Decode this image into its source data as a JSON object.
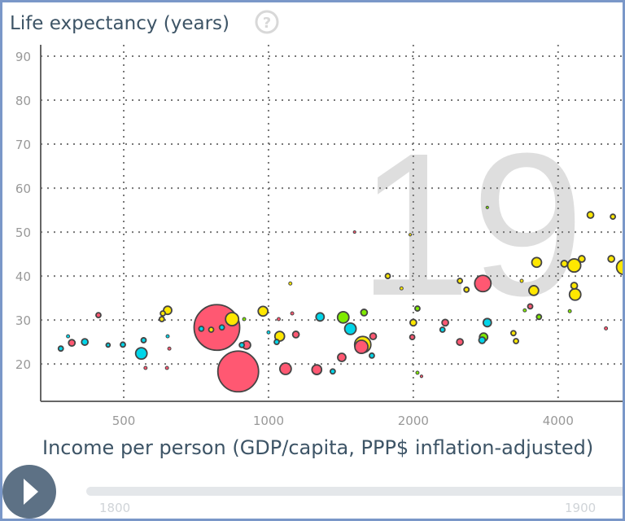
{
  "chart_data": {
    "type": "scatter",
    "title": "",
    "ylabel": "Life expectancy (years)",
    "xlabel": "Income per person (GDP/capita, PPP$ inflation-adjusted)",
    "x_scale": "log",
    "xlim": [
      336,
      5510
    ],
    "ylim": [
      11.5,
      92.6
    ],
    "x_ticks": [
      "500",
      "1000",
      "2000",
      "4000"
    ],
    "x_tick_values": [
      500,
      1000,
      2000,
      4000
    ],
    "y_ticks": [
      "20",
      "30",
      "40",
      "50",
      "60",
      "70",
      "80",
      "90"
    ],
    "y_tick_values": [
      20,
      30,
      40,
      50,
      60,
      70,
      80,
      90
    ],
    "grid": true,
    "year_watermark": "19",
    "colors": {
      "red": "#ff5872",
      "yellow": "#ffe700",
      "cyan": "#00d5e9",
      "green": "#7feb00"
    },
    "size_encoding": "population (millions, estimated)",
    "points": [
      [
        370,
        23.5,
        4.6,
        "cyan"
      ],
      [
        390,
        24.8,
        8,
        "red"
      ],
      [
        383,
        26.3,
        2,
        "cyan"
      ],
      [
        415,
        25.0,
        8,
        "cyan"
      ],
      [
        464,
        24.3,
        3,
        "cyan"
      ],
      [
        498,
        24.4,
        4.6,
        "cyan"
      ],
      [
        544,
        22.4,
        25,
        "cyan"
      ],
      [
        550,
        25.4,
        4.6,
        "cyan"
      ],
      [
        443,
        31.1,
        4.6,
        "red"
      ],
      [
        617,
        32.2,
        12.8,
        "yellow"
      ],
      [
        603,
        31.5,
        4.6,
        "yellow"
      ],
      [
        600,
        30.2,
        4.6,
        "yellow"
      ],
      [
        617,
        26.3,
        2,
        "cyan"
      ],
      [
        622,
        23.5,
        2,
        "red"
      ],
      [
        555,
        19.1,
        2,
        "red"
      ],
      [
        615,
        19.1,
        2,
        "red"
      ],
      [
        781,
        28.3,
        400,
        "red"
      ],
      [
        840,
        30.2,
        33,
        "yellow"
      ],
      [
        865,
        18.3,
        319,
        "red"
      ],
      [
        760,
        27.8,
        4.6,
        "yellow"
      ],
      [
        725,
        28.0,
        4.6,
        "cyan"
      ],
      [
        800,
        28.3,
        4.6,
        "cyan"
      ],
      [
        974,
        32.0,
        18,
        "yellow"
      ],
      [
        1055,
        26.3,
        18,
        "yellow"
      ],
      [
        1085,
        18.9,
        25,
        "red"
      ],
      [
        900,
        24.3,
        12.8,
        "red"
      ],
      [
        880,
        24.3,
        4.6,
        "cyan"
      ],
      [
        1000,
        27.2,
        2,
        "cyan"
      ],
      [
        1040,
        25.0,
        4.6,
        "cyan"
      ],
      [
        1140,
        26.7,
        8,
        "red"
      ],
      [
        1110,
        38.3,
        2,
        "yellow"
      ],
      [
        1280,
        30.7,
        12.8,
        "cyan"
      ],
      [
        1260,
        18.7,
        18,
        "red"
      ],
      [
        1430,
        30.6,
        25,
        "green"
      ],
      [
        1480,
        28.0,
        25,
        "cyan"
      ],
      [
        1570,
        24.4,
        51,
        "yellow"
      ],
      [
        1560,
        23.9,
        33,
        "red"
      ],
      [
        1420,
        21.5,
        12.8,
        "red"
      ],
      [
        1360,
        18.3,
        4.6,
        "cyan"
      ],
      [
        1580,
        31.7,
        8,
        "green"
      ],
      [
        1650,
        26.3,
        8,
        "red"
      ],
      [
        1640,
        21.9,
        4.6,
        "cyan"
      ],
      [
        1770,
        40.0,
        4.6,
        "yellow"
      ],
      [
        1890,
        37.2,
        2,
        "yellow"
      ],
      [
        2040,
        32.6,
        4.6,
        "green"
      ],
      [
        2000,
        29.4,
        8,
        "yellow"
      ],
      [
        1990,
        26.1,
        4.6,
        "red"
      ],
      [
        2330,
        29.4,
        8,
        "red"
      ],
      [
        2300,
        27.8,
        4.6,
        "cyan"
      ],
      [
        2500,
        25.0,
        8,
        "red"
      ],
      [
        2790,
        38.3,
        51,
        "red"
      ],
      [
        2580,
        36.9,
        4.6,
        "yellow"
      ],
      [
        2500,
        38.9,
        4.6,
        "yellow"
      ],
      [
        2850,
        29.4,
        12.8,
        "cyan"
      ],
      [
        2800,
        26.1,
        12.8,
        "green"
      ],
      [
        2780,
        25.4,
        8,
        "cyan"
      ],
      [
        3230,
        27.0,
        4.6,
        "yellow"
      ],
      [
        3270,
        25.2,
        4.6,
        "yellow"
      ],
      [
        3560,
        36.7,
        18,
        "yellow"
      ],
      [
        3500,
        33.1,
        4.6,
        "red"
      ],
      [
        3410,
        32.2,
        2,
        "green"
      ],
      [
        3650,
        30.7,
        4.6,
        "green"
      ],
      [
        3360,
        38.9,
        2,
        "yellow"
      ],
      [
        4230,
        32.0,
        2,
        "green"
      ],
      [
        5030,
        28.1,
        2,
        "red"
      ],
      [
        4670,
        53.9,
        8,
        "yellow"
      ],
      [
        5200,
        53.5,
        4.6,
        "yellow"
      ],
      [
        3610,
        43.1,
        18,
        "yellow"
      ],
      [
        4320,
        42.4,
        33,
        "yellow"
      ],
      [
        4120,
        42.8,
        8,
        "yellow"
      ],
      [
        4480,
        43.9,
        8,
        "yellow"
      ],
      [
        5160,
        43.9,
        8,
        "yellow"
      ],
      [
        5480,
        42.0,
        41,
        "yellow"
      ],
      [
        4340,
        35.8,
        25,
        "yellow"
      ],
      [
        4320,
        37.8,
        8,
        "yellow"
      ],
      [
        2850,
        55.6,
        1,
        "green"
      ],
      [
        1970,
        49.4,
        1,
        "yellow"
      ],
      [
        1510,
        50.0,
        1,
        "red"
      ],
      [
        2040,
        18.0,
        2,
        "green"
      ],
      [
        2080,
        17.2,
        1,
        "red"
      ],
      [
        1120,
        31.5,
        2,
        "red"
      ],
      [
        1050,
        30.2,
        2,
        "red"
      ],
      [
        890,
        30.2,
        2,
        "green"
      ]
    ]
  },
  "controls": {
    "play_label": "play",
    "timeline_start": "1800",
    "timeline_mid": "1900"
  },
  "help_icon": "question-circle-icon"
}
